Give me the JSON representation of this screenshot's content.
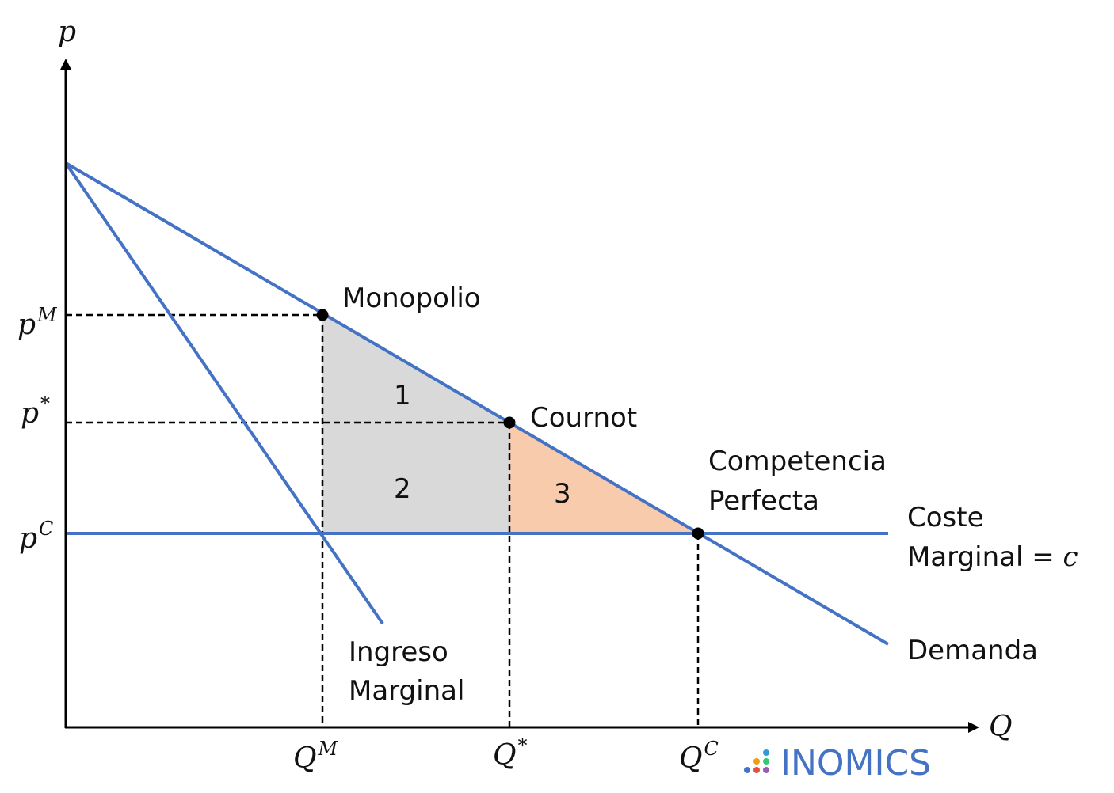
{
  "axes": {
    "y_label": "p",
    "x_label": "Q"
  },
  "price_labels": [
    {
      "base": "p",
      "sup": "M"
    },
    {
      "base": "p",
      "sup": "*"
    },
    {
      "base": "p",
      "sup": "C"
    }
  ],
  "quantity_labels": [
    {
      "base": "Q",
      "sup": "M"
    },
    {
      "base": "Q",
      "sup": "*"
    },
    {
      "base": "Q",
      "sup": "C"
    }
  ],
  "points": {
    "monopolio": "Monopolio",
    "cournot": "Cournot",
    "competencia_line1": "Competencia",
    "competencia_line2": "Perfecta"
  },
  "curves": {
    "coste_line1": "Coste",
    "coste_line2": "Marginal = ",
    "coste_var": "c",
    "ingreso_line1": "Ingreso",
    "ingreso_line2": "Marginal",
    "demanda": "Demanda"
  },
  "areas": {
    "area1": "1",
    "area2": "2",
    "area3": "3"
  },
  "logo": {
    "text": "INOMICS"
  },
  "colors": {
    "curve": "#4472C4",
    "shaded_grey": "#D9D9D9",
    "shaded_orange": "#F8CBAD",
    "logo_text": "#4472C4"
  }
}
